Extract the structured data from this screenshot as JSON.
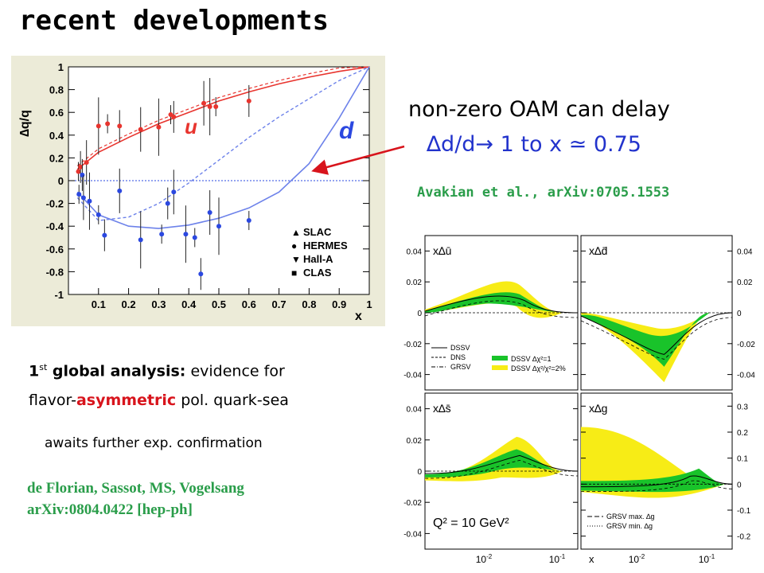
{
  "slide": {
    "title": "recent developments",
    "oam_line1": "non-zero OAM can delay",
    "oam_line2": "∆d/d→ 1 to x ≃ 0.75",
    "avakian_ref": "Avakian et al., arXiv:0705.1553",
    "global_prefix": "1",
    "global_sup": "st",
    "global_bold": " global analysis:",
    "global_rest": " evidence for",
    "flavor_prefix": "flavor-",
    "flavor_red": "asymmetric",
    "flavor_rest": " pol. quark-sea",
    "awaits": "awaits further exp. confirmation",
    "cite_line1": "de Florian, Sassot, MS, Vogelsang",
    "cite_line2": "arXiv:0804.0422 [hep-ph]"
  },
  "chart_data": [
    {
      "type": "scatter",
      "ylabel": "∆q/q",
      "xlabel": "x",
      "xlim": [
        0,
        1
      ],
      "ylim": [
        -1,
        1
      ],
      "x_ticks": [
        "0.1",
        "0.2",
        "0.3",
        "0.4",
        "0.5",
        "0.6",
        "0.7",
        "0.8",
        "0.9",
        "1"
      ],
      "y_ticks": [
        "1",
        "0.8",
        "0.6",
        "0.4",
        "0.2",
        "0",
        "-0.2",
        "-0.4",
        "-0.6",
        "-0.8",
        "-1"
      ],
      "labels": {
        "u": "u",
        "d": "d"
      },
      "legend": [
        "SLAC",
        "HERMES",
        "Hall-A",
        "CLAS"
      ],
      "legend_position": "lower-right",
      "colors": {
        "u": "#e8342e",
        "d": "#2b48e0",
        "frame_bg": "#ecebd8"
      },
      "u_points": [
        [
          0.033,
          0.08
        ],
        [
          0.04,
          0.12
        ],
        [
          0.06,
          0.16
        ],
        [
          0.1,
          0.48
        ],
        [
          0.13,
          0.5
        ],
        [
          0.17,
          0.48
        ],
        [
          0.24,
          0.45
        ],
        [
          0.3,
          0.47
        ],
        [
          0.34,
          0.58
        ],
        [
          0.35,
          0.56
        ],
        [
          0.45,
          0.68
        ],
        [
          0.47,
          0.65
        ],
        [
          0.49,
          0.65
        ],
        [
          0.6,
          0.7
        ]
      ],
      "d_points": [
        [
          0.035,
          -0.12
        ],
        [
          0.046,
          0.05
        ],
        [
          0.05,
          -0.15
        ],
        [
          0.07,
          -0.18
        ],
        [
          0.1,
          -0.3
        ],
        [
          0.12,
          -0.48
        ],
        [
          0.17,
          -0.09
        ],
        [
          0.24,
          -0.52
        ],
        [
          0.31,
          -0.47
        ],
        [
          0.33,
          -0.2
        ],
        [
          0.35,
          -0.1
        ],
        [
          0.39,
          -0.47
        ],
        [
          0.42,
          -0.5
        ],
        [
          0.44,
          -0.82
        ],
        [
          0.47,
          -0.28
        ],
        [
          0.5,
          -0.4
        ],
        [
          0.6,
          -0.35
        ]
      ],
      "u_curve_solid": [
        [
          0.03,
          0.1
        ],
        [
          0.1,
          0.25
        ],
        [
          0.2,
          0.38
        ],
        [
          0.3,
          0.5
        ],
        [
          0.4,
          0.6
        ],
        [
          0.5,
          0.7
        ],
        [
          0.6,
          0.78
        ],
        [
          0.7,
          0.85
        ],
        [
          0.8,
          0.91
        ],
        [
          0.9,
          0.96
        ],
        [
          1,
          1
        ]
      ],
      "d_curve_solid": [
        [
          0.03,
          -0.1
        ],
        [
          0.1,
          -0.3
        ],
        [
          0.2,
          -0.4
        ],
        [
          0.3,
          -0.42
        ],
        [
          0.4,
          -0.39
        ],
        [
          0.5,
          -0.33
        ],
        [
          0.6,
          -0.24
        ],
        [
          0.7,
          -0.1
        ],
        [
          0.8,
          0.15
        ],
        [
          0.9,
          0.55
        ],
        [
          1,
          1
        ]
      ],
      "d_curve_dashed": [
        [
          0.03,
          -0.15
        ],
        [
          0.1,
          -0.35
        ],
        [
          0.2,
          -0.32
        ],
        [
          0.3,
          -0.2
        ],
        [
          0.4,
          -0.02
        ],
        [
          0.5,
          0.18
        ],
        [
          0.6,
          0.38
        ],
        [
          0.7,
          0.56
        ],
        [
          0.8,
          0.72
        ],
        [
          0.9,
          0.88
        ],
        [
          1,
          1
        ]
      ]
    },
    {
      "type": "line",
      "panels": [
        {
          "label": "x∆ū",
          "ylim": [
            -0.05,
            0.05
          ],
          "y_ticks": [
            "0.04",
            "0.02",
            "0",
            "-0.02",
            "-0.04"
          ],
          "y_side": "left"
        },
        {
          "label": "x∆d̄",
          "ylim": [
            -0.05,
            0.05
          ],
          "y_ticks": [
            "0.04",
            "0.02",
            "0",
            "-0.02",
            "-0.04"
          ],
          "y_side": "right"
        },
        {
          "label": "x∆s̄",
          "ylim": [
            -0.05,
            0.05
          ],
          "y_ticks": [
            "0.04",
            "0.02",
            "0",
            "-0.02",
            "-0.04"
          ],
          "y_side": "left"
        },
        {
          "label": "x∆g",
          "ylim": [
            -0.25,
            0.35
          ],
          "y_ticks": [
            "0.3",
            "0.2",
            "0.1",
            "0",
            "-0.1",
            "-0.2"
          ],
          "y_side": "right"
        }
      ],
      "x_ticks": [
        "10",
        "10",
        "10",
        "10"
      ],
      "x_tick_exps": [
        "-2",
        "-1",
        "-2",
        "-1"
      ],
      "xlabel": "x",
      "q2_label": "Q² = 10 GeV²",
      "legend_left": [
        "DSSV",
        "DNS",
        "GRSV"
      ],
      "legend_right": [
        "DSSV ∆χ²=1",
        "DSSV ∆χ²/χ²=2%"
      ],
      "legend_g": [
        "GRSV max. ∆g",
        "GRSV min. ∆g"
      ],
      "colors": {
        "band_wide": "#f7ec16",
        "band_narrow": "#19c32a"
      }
    }
  ]
}
